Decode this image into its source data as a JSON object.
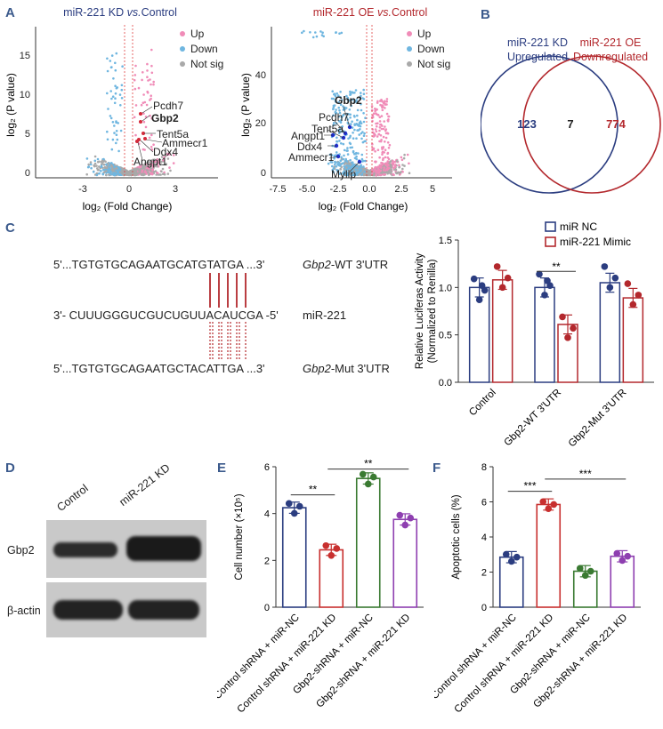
{
  "panels": {
    "A": "A",
    "B": "B",
    "C": "C",
    "D": "D",
    "E": "E",
    "F": "F"
  },
  "volcano_kd": {
    "title_pre": "miR-221 KD ",
    "title_vs": "vs.",
    "title_post": "Control",
    "xlabel": "log₂ (Fold Change)",
    "ylabel": "log₂ (P value)",
    "xticks": [
      "-3",
      "0",
      "3"
    ],
    "yticks": [
      "0",
      "5",
      "10",
      "15"
    ],
    "legend": [
      "Up",
      "Down",
      "Not sig"
    ],
    "genes": [
      "Pcdh7",
      "Gbp2",
      "Tent5a",
      "Ammecr1",
      "Ddx4",
      "Angpt1"
    ],
    "colors": {
      "up": "#f08cb8",
      "down": "#6fb6e0",
      "ns": "#a9a9a9",
      "title": "#2b3d80"
    }
  },
  "volcano_oe": {
    "title_pre": "miR-221 OE ",
    "title_vs": "vs.",
    "title_post": "Control",
    "xlabel": "log₂ (Fold Change)",
    "ylabel": "log₂ (P value)",
    "xticks": [
      "-7.5",
      "-5.0",
      "-2.5",
      "0.0",
      "2.5",
      "5"
    ],
    "yticks": [
      "0",
      "20",
      "40"
    ],
    "legend": [
      "Up",
      "Down",
      "Not sig"
    ],
    "genes": [
      "Gbp2",
      "Pcdh7",
      "Tent5a",
      "Angpt1",
      "Ddx4",
      "Ammecr1",
      "Mylip"
    ],
    "colors": {
      "title": "#b3282d"
    }
  },
  "venn": {
    "left_title": [
      "miR-221 KD",
      "Upregulated"
    ],
    "right_title": [
      "miR-221 OE",
      "Downregulated"
    ],
    "left_count": "123",
    "overlap_count": "7",
    "right_count": "774",
    "colors": {
      "left": "#2b3d80",
      "right": "#b3282d"
    }
  },
  "sequences": {
    "wt": "5'...TGTGTGCAGAATGCATGTATGA ...3'",
    "mir": "3'- CUUUGGGUCGUCUGUUACAUCGA -5'",
    "mut": "5'...TGTGTGCAGAATGCTACATTGA ...3'",
    "wt_label_gene": "Gbp2",
    "wt_label_rest": "-WT 3'UTR",
    "mir_label": "miR-221",
    "mut_label_gene": "Gbp2",
    "mut_label_rest": "-Mut 3'UTR"
  },
  "chart_data": [
    {
      "id": "luciferase",
      "type": "bar",
      "categories": [
        "Control",
        "Gbp2-WT 3'UTR",
        "Gbp2-Mut 3'UTR"
      ],
      "series": [
        {
          "name": "miR NC",
          "values": [
            1.0,
            1.0,
            1.05
          ],
          "color": "#2b3d80"
        },
        {
          "name": "miR-221 Mimic",
          "values": [
            1.08,
            0.61,
            0.89
          ],
          "color": "#b3282d"
        }
      ],
      "ylabel": "Relative Luciferas Activity (Normalized to Renilla)",
      "ylabel_lines": [
        "Relative Luciferas Activity",
        "(Normalized to Renilla)"
      ],
      "ylim": [
        0,
        1.5
      ],
      "yticks": [
        "0.0",
        "0.5",
        "1.0",
        "1.5"
      ],
      "significance": "**"
    },
    {
      "id": "cell_number",
      "type": "bar",
      "categories": [
        "Control shRNA + miR-NC",
        "Control shRNA + miR-221 KD",
        "Gbp2-shRNA + miR-NC",
        "Gbp2-shRNA + miR-221 KD"
      ],
      "values": [
        4.25,
        2.45,
        5.5,
        3.75
      ],
      "colors": [
        "#2b3d80",
        "#c8302f",
        "#3a7a32",
        "#8e3fb0"
      ],
      "ylabel": "Cell number (×10⁵)",
      "ylim": [
        0,
        6
      ],
      "yticks": [
        "0",
        "2",
        "4",
        "6"
      ],
      "significance": [
        "**",
        "**"
      ]
    },
    {
      "id": "apoptosis",
      "type": "bar",
      "categories": [
        "Control shRNA + miR-NC",
        "Control shRNA + miR-221 KD",
        "Gbp2-shRNA + miR-NC",
        "Gbp2-shRNA + miR-221 KD"
      ],
      "values": [
        2.85,
        5.85,
        2.05,
        2.9
      ],
      "colors": [
        "#2b3d80",
        "#c8302f",
        "#3a7a32",
        "#8e3fb0"
      ],
      "ylabel": "Apoptotic cells (%)",
      "ylim": [
        0,
        8
      ],
      "yticks": [
        "0",
        "2",
        "4",
        "6",
        "8"
      ],
      "significance": [
        "***",
        "***"
      ]
    }
  ],
  "western": {
    "columns": [
      "Control",
      "miR-221 KD"
    ],
    "rows": [
      "Gbp2",
      "β-actin"
    ]
  }
}
